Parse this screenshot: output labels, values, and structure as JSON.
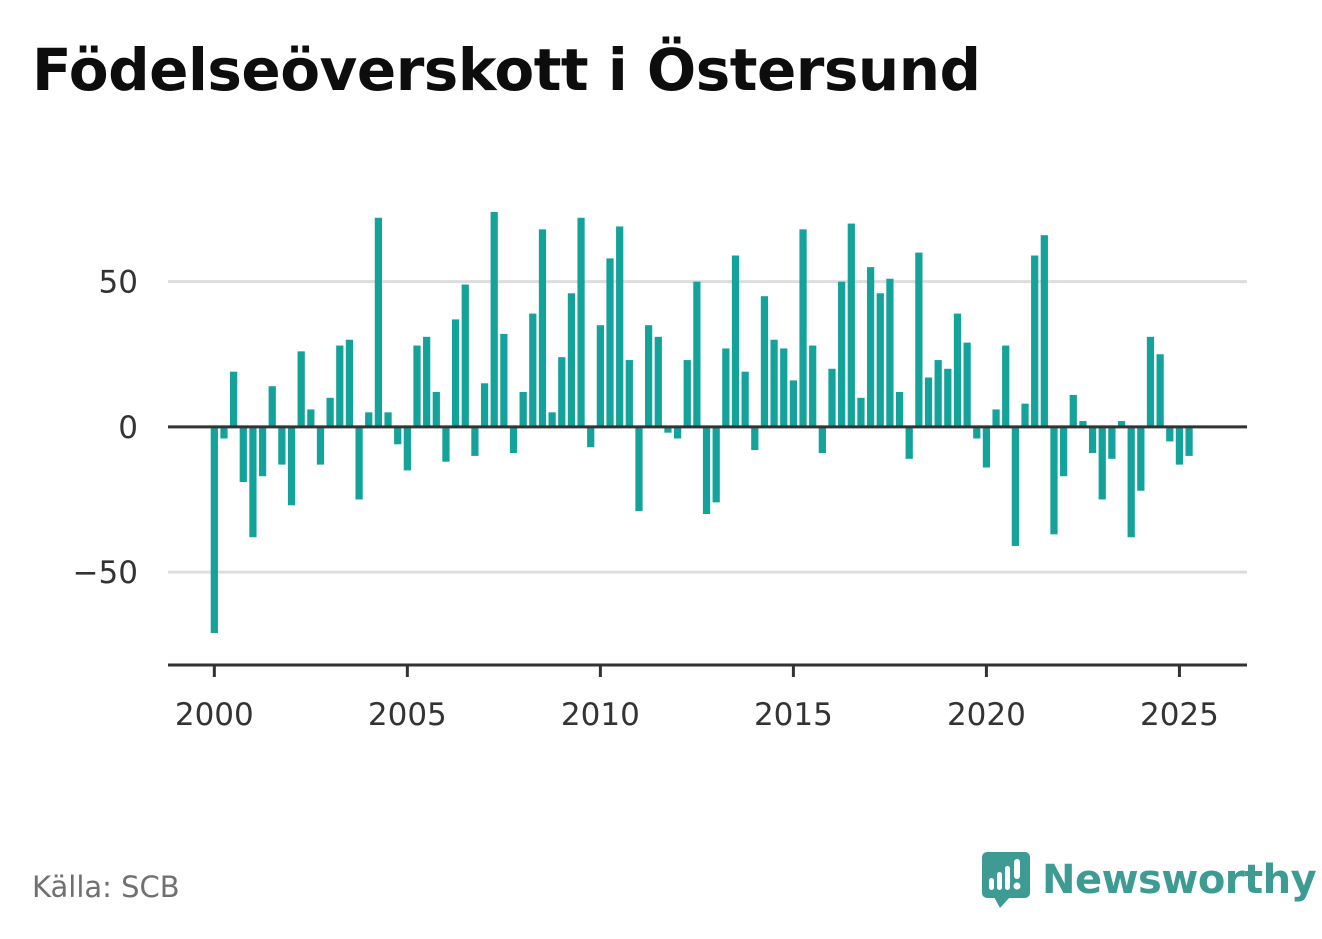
{
  "title": "Födelseöverskott i Östersund",
  "source": "Källa: SCB",
  "brand": {
    "name": "Newsworthy",
    "icon": "newsworthy-logo-icon"
  },
  "colors": {
    "bar": "#14a39a",
    "grid": "#dddddd",
    "axis": "#333333",
    "brand": "#3d9b94"
  },
  "chart_data": {
    "type": "bar",
    "frequency": "quarterly",
    "x_start": 2000,
    "x_ticks": [
      2000,
      2005,
      2010,
      2015,
      2020,
      2025
    ],
    "y_ticks": [
      -50,
      0,
      50
    ],
    "y_tick_labels": [
      "−50",
      "0",
      "50"
    ],
    "ylim": [
      -82,
      85
    ],
    "xlim": [
      1998.8,
      2026.75
    ],
    "grid": true,
    "values": [
      -71,
      -4,
      19,
      -19,
      -38,
      -17,
      14,
      -13,
      -27,
      26,
      6,
      -13,
      10,
      28,
      30,
      -25,
      5,
      72,
      5,
      -6,
      -15,
      28,
      31,
      12,
      -12,
      37,
      49,
      -10,
      15,
      74,
      32,
      -9,
      12,
      39,
      68,
      5,
      24,
      46,
      72,
      -7,
      35,
      58,
      69,
      23,
      -29,
      35,
      31,
      -2,
      -4,
      23,
      50,
      -30,
      -26,
      27,
      59,
      19,
      -8,
      45,
      30,
      27,
      16,
      68,
      28,
      -9,
      20,
      50,
      70,
      10,
      55,
      46,
      51,
      12,
      -11,
      60,
      17,
      23,
      20,
      39,
      29,
      -4,
      -14,
      6,
      28,
      -41,
      8,
      59,
      66,
      -37,
      -17,
      11,
      2,
      -9,
      -25,
      -11,
      2,
      -38,
      -22,
      31,
      25,
      -5,
      -13,
      -10
    ]
  }
}
